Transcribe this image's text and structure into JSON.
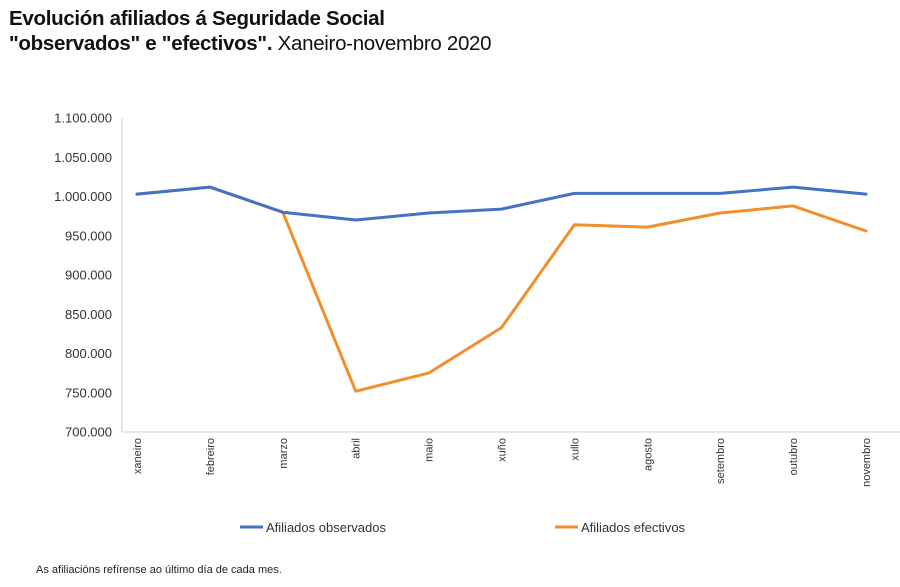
{
  "chart_data": {
    "type": "line",
    "title_line1": "Evolución afiliados á Seguridade Social",
    "title_line2_bold": "\"observados\" e \"efectivos\".",
    "title_line2_rest": " Xaneiro-novembro 2020",
    "xlabel": "",
    "ylabel": "",
    "ylim": [
      700000,
      1100000
    ],
    "y_ticks": [
      700000,
      750000,
      800000,
      850000,
      900000,
      950000,
      1000000,
      1050000,
      1100000
    ],
    "y_tick_labels": [
      "700.000",
      "750.000",
      "800.000",
      "850.000",
      "900.000",
      "950.000",
      "1.000.000",
      "1.050.000",
      "1.100.000"
    ],
    "categories": [
      "xaneiro",
      "febreiro",
      "marzo",
      "abril",
      "maio",
      "xuño",
      "xullo",
      "agosto",
      "setembro",
      "outubro",
      "novembro"
    ],
    "grid": false,
    "legend_position": "bottom",
    "series": [
      {
        "name": "Afiliados observados",
        "color": "#4472c4",
        "values": [
          1003000,
          1012000,
          980000,
          970000,
          979000,
          984000,
          1004000,
          1004000,
          1004000,
          1012000,
          1003000
        ]
      },
      {
        "name": "Afiliados efectivos",
        "color": "#f28e2b",
        "values": [
          1003000,
          1012000,
          980000,
          752000,
          775000,
          833000,
          964000,
          961000,
          979000,
          988000,
          956000
        ]
      }
    ],
    "footnote": "As afiliacións refírense ao último día de cada mes."
  }
}
